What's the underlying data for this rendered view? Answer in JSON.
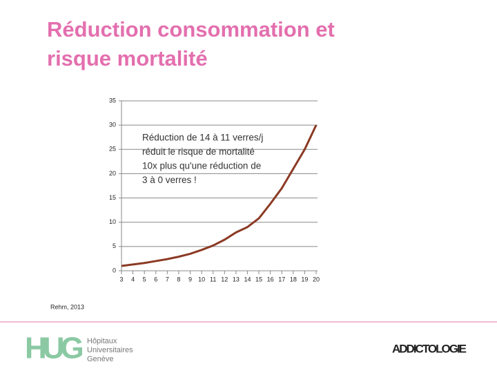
{
  "chart_data": {
    "type": "line",
    "title": "Réduction consommation et risque mortalité",
    "annotation": [
      "Réduction de 14 à 11 verres/j",
      "réduit le risque de mortalité",
      "10x plus qu'une réduction de",
      "3 à 0 verres !"
    ],
    "x": [
      3,
      4,
      5,
      6,
      7,
      8,
      9,
      10,
      11,
      12,
      13,
      14,
      15,
      16,
      17,
      18,
      19,
      20
    ],
    "xlim": [
      3,
      20
    ],
    "series": [
      {
        "name": null,
        "color": "#8b3a24",
        "values": [
          1.0,
          1.3,
          1.6,
          2.0,
          2.4,
          2.9,
          3.5,
          4.3,
          5.2,
          6.4,
          7.9,
          9.0,
          10.8,
          13.8,
          17.0,
          21.0,
          25.0,
          30.0
        ]
      }
    ],
    "ylim": [
      0,
      35
    ],
    "yticks": [
      0,
      5,
      10,
      15,
      20,
      25,
      30,
      35
    ],
    "grid": true,
    "source": "Rehm, 2013"
  },
  "footer": {
    "logo_left_mark": "HUG",
    "logo_left_text": [
      "Hôpitaux",
      "Universitaires",
      "Genève"
    ],
    "logo_right": "ADDICTOLOGIE"
  }
}
